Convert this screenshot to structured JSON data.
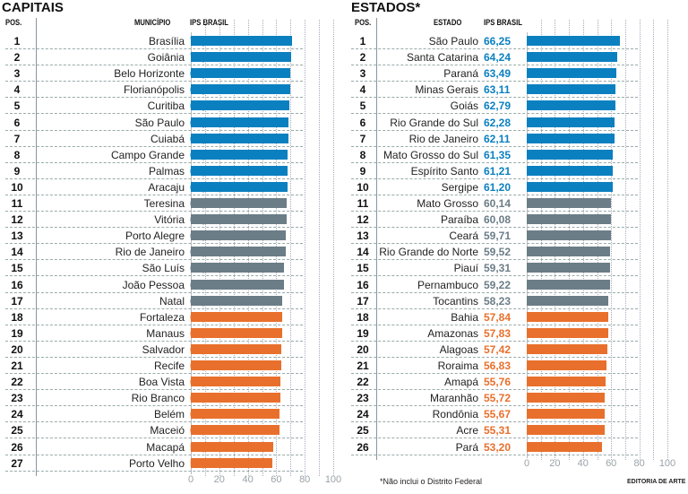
{
  "colors": {
    "top": "#0b80c0",
    "mid": "#6b7d87",
    "low": "#e8702c"
  },
  "chart_data": [
    {
      "type": "bar",
      "orientation": "horizontal",
      "title": "CAPITAIS",
      "col_pos": "POS.",
      "col_name": "MUNICÍPIO",
      "col_value": "IPS BRASIL",
      "xlim": [
        0,
        100
      ],
      "xticks": [
        "0",
        "20",
        "40",
        "60",
        "80",
        "100"
      ],
      "grid": "dotted every 10",
      "rows": [
        {
          "pos": "1",
          "name": "Brasília",
          "value": "71,25",
          "v": 71.25,
          "tier": "top"
        },
        {
          "pos": "2",
          "name": "Goiânia",
          "value": "70,49",
          "v": 70.49,
          "tier": "top"
        },
        {
          "pos": "3",
          "name": "Belo Horizonte",
          "value": "69,62",
          "v": 69.62,
          "tier": "top"
        },
        {
          "pos": "4",
          "name": "Florianópolis",
          "value": "69,56",
          "v": 69.56,
          "tier": "top"
        },
        {
          "pos": "5",
          "name": "Curitiba",
          "value": "69,36",
          "v": 69.36,
          "tier": "top"
        },
        {
          "pos": "6",
          "name": "São Paulo",
          "value": "68,79",
          "v": 68.79,
          "tier": "top"
        },
        {
          "pos": "7",
          "name": "Cuiabá",
          "value": "68,47",
          "v": 68.47,
          "tier": "top"
        },
        {
          "pos": "8",
          "name": "Campo Grande",
          "value": "68,21",
          "v": 68.21,
          "tier": "top"
        },
        {
          "pos": "9",
          "name": "Palmas",
          "value": "68,07",
          "v": 68.07,
          "tier": "top"
        },
        {
          "pos": "10",
          "name": "Aracaju",
          "value": "67,89",
          "v": 67.89,
          "tier": "top"
        },
        {
          "pos": "11",
          "name": "Teresina",
          "value": "67,37",
          "v": 67.37,
          "tier": "mid"
        },
        {
          "pos": "12",
          "name": "Vitória",
          "value": "67,20",
          "v": 67.2,
          "tier": "mid"
        },
        {
          "pos": "13",
          "name": "Porto Alegre",
          "value": "66,90",
          "v": 66.9,
          "tier": "mid"
        },
        {
          "pos": "14",
          "name": "Rio de Janeiro",
          "value": "66,41",
          "v": 66.41,
          "tier": "mid"
        },
        {
          "pos": "15",
          "name": "São Luís",
          "value": "65,69",
          "v": 65.69,
          "tier": "mid"
        },
        {
          "pos": "16",
          "name": "João Pessoa",
          "value": "65,25",
          "v": 65.25,
          "tier": "mid"
        },
        {
          "pos": "17",
          "name": "Natal",
          "value": "64,45",
          "v": 64.45,
          "tier": "mid"
        },
        {
          "pos": "18",
          "name": "Fortaleza",
          "value": "64,42",
          "v": 64.42,
          "tier": "low"
        },
        {
          "pos": "19",
          "name": "Manaus",
          "value": "64,35",
          "v": 64.35,
          "tier": "low"
        },
        {
          "pos": "20",
          "name": "Salvador",
          "value": "63,80",
          "v": 63.8,
          "tier": "low"
        },
        {
          "pos": "21",
          "name": "Recife",
          "value": "63,73",
          "v": 63.73,
          "tier": "low"
        },
        {
          "pos": "22",
          "name": "Boa Vista",
          "value": "62,76",
          "v": 62.76,
          "tier": "low"
        },
        {
          "pos": "23",
          "name": "Rio Branco",
          "value": "62,68",
          "v": 62.68,
          "tier": "low"
        },
        {
          "pos": "24",
          "name": "Belém",
          "value": "62,51",
          "v": 62.51,
          "tier": "low"
        },
        {
          "pos": "25",
          "name": "Maceió",
          "value": "62,37",
          "v": 62.37,
          "tier": "low"
        },
        {
          "pos": "26",
          "name": "Macapá",
          "value": "58,03",
          "v": 58.03,
          "tier": "low"
        },
        {
          "pos": "27",
          "name": "Porto Velho",
          "value": "57,10",
          "v": 57.1,
          "tier": "low"
        }
      ]
    },
    {
      "type": "bar",
      "orientation": "horizontal",
      "title": "ESTADOS*",
      "col_pos": "POS.",
      "col_name": "ESTADO",
      "col_value": "IPS BRASIL",
      "xlim": [
        0,
        100
      ],
      "xticks": [
        "0",
        "20",
        "40",
        "60",
        "80",
        "100"
      ],
      "grid": "dotted every 10",
      "rows": [
        {
          "pos": "1",
          "name": "São Paulo",
          "value": "66,25",
          "v": 66.25,
          "tier": "top"
        },
        {
          "pos": "2",
          "name": "Santa Catarina",
          "value": "64,24",
          "v": 64.24,
          "tier": "top"
        },
        {
          "pos": "3",
          "name": "Paraná",
          "value": "63,49",
          "v": 63.49,
          "tier": "top"
        },
        {
          "pos": "4",
          "name": "Minas Gerais",
          "value": "63,11",
          "v": 63.11,
          "tier": "top"
        },
        {
          "pos": "5",
          "name": "Goiás",
          "value": "62,79",
          "v": 62.79,
          "tier": "top"
        },
        {
          "pos": "6",
          "name": "Rio Grande do Sul",
          "value": "62,28",
          "v": 62.28,
          "tier": "top"
        },
        {
          "pos": "7",
          "name": "Rio de Janeiro",
          "value": "62,11",
          "v": 62.11,
          "tier": "top"
        },
        {
          "pos": "8",
          "name": "Mato Grosso do Sul",
          "value": "61,35",
          "v": 61.35,
          "tier": "top"
        },
        {
          "pos": "9",
          "name": "Espírito Santo",
          "value": "61,21",
          "v": 61.21,
          "tier": "top"
        },
        {
          "pos": "10",
          "name": "Sergipe",
          "value": "61,20",
          "v": 61.2,
          "tier": "top"
        },
        {
          "pos": "11",
          "name": "Mato Grosso",
          "value": "60,14",
          "v": 60.14,
          "tier": "mid"
        },
        {
          "pos": "12",
          "name": "Paraíba",
          "value": "60,08",
          "v": 60.08,
          "tier": "mid"
        },
        {
          "pos": "13",
          "name": "Ceará",
          "value": "59,71",
          "v": 59.71,
          "tier": "mid"
        },
        {
          "pos": "14",
          "name": "Rio Grande do Norte",
          "value": "59,52",
          "v": 59.52,
          "tier": "mid"
        },
        {
          "pos": "15",
          "name": "Piauí",
          "value": "59,31",
          "v": 59.31,
          "tier": "mid"
        },
        {
          "pos": "16",
          "name": "Pernambuco",
          "value": "59,22",
          "v": 59.22,
          "tier": "mid"
        },
        {
          "pos": "17",
          "name": "Tocantins",
          "value": "58,23",
          "v": 58.23,
          "tier": "mid"
        },
        {
          "pos": "18",
          "name": "Bahia",
          "value": "57,84",
          "v": 57.84,
          "tier": "low"
        },
        {
          "pos": "19",
          "name": "Amazonas",
          "value": "57,83",
          "v": 57.83,
          "tier": "low"
        },
        {
          "pos": "20",
          "name": "Alagoas",
          "value": "57,42",
          "v": 57.42,
          "tier": "low"
        },
        {
          "pos": "21",
          "name": "Roraima",
          "value": "56,83",
          "v": 56.83,
          "tier": "low"
        },
        {
          "pos": "22",
          "name": "Amapá",
          "value": "55,76",
          "v": 55.76,
          "tier": "low"
        },
        {
          "pos": "23",
          "name": "Maranhão",
          "value": "55,72",
          "v": 55.72,
          "tier": "low"
        },
        {
          "pos": "24",
          "name": "Rondônia",
          "value": "55,67",
          "v": 55.67,
          "tier": "low"
        },
        {
          "pos": "25",
          "name": "Acre",
          "value": "55,31",
          "v": 55.31,
          "tier": "low"
        },
        {
          "pos": "26",
          "name": "Pará",
          "value": "53,20",
          "v": 53.2,
          "tier": "low"
        }
      ]
    }
  ],
  "footnote": "*Não inclui o Distrito Federal",
  "credit": "EDITORIA DE ARTE"
}
